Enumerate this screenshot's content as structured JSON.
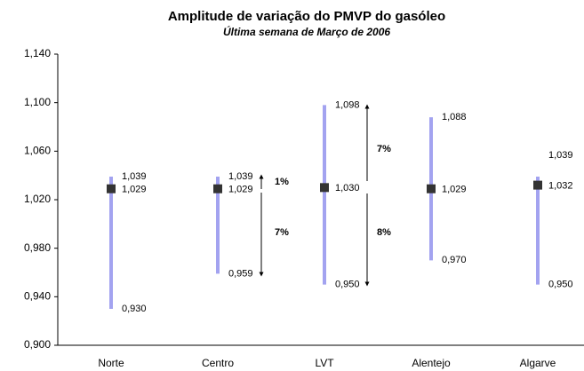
{
  "chart_data": {
    "type": "range",
    "title": "Amplitude de variação do PMVP do gasóleo",
    "subtitle": "Última semana de Março de 2006",
    "categories": [
      "Norte",
      "Centro",
      "LVT",
      "Alentejo",
      "Algarve"
    ],
    "high": [
      1.039,
      1.039,
      1.098,
      1.088,
      1.039
    ],
    "high_labels": [
      "1,039",
      "1,039",
      "1,098",
      "1,088",
      "1,039"
    ],
    "mean": [
      1.029,
      1.029,
      1.03,
      1.029,
      1.032
    ],
    "mean_labels": [
      "1,029",
      "1,029",
      "1,030",
      "1,029",
      "1,032"
    ],
    "low": [
      0.93,
      0.959,
      0.95,
      0.97,
      0.95
    ],
    "low_labels": [
      "0,930",
      "0,959",
      "0,950",
      "0,970",
      "0,950"
    ],
    "line_color": "#a3a3f0",
    "marker_color": "#333333",
    "ylim": [
      0.9,
      1.14
    ],
    "yticks": [
      {
        "value": 0.9,
        "label": "0,900"
      },
      {
        "value": 0.94,
        "label": "0,940"
      },
      {
        "value": 0.98,
        "label": "0,980"
      },
      {
        "value": 1.02,
        "label": "1,020"
      },
      {
        "value": 1.06,
        "label": "1,060"
      },
      {
        "value": 1.1,
        "label": "1,100"
      },
      {
        "value": 1.14,
        "label": "1,140"
      }
    ],
    "annotations": [
      "1%",
      "7%",
      "7%",
      "8%"
    ]
  }
}
